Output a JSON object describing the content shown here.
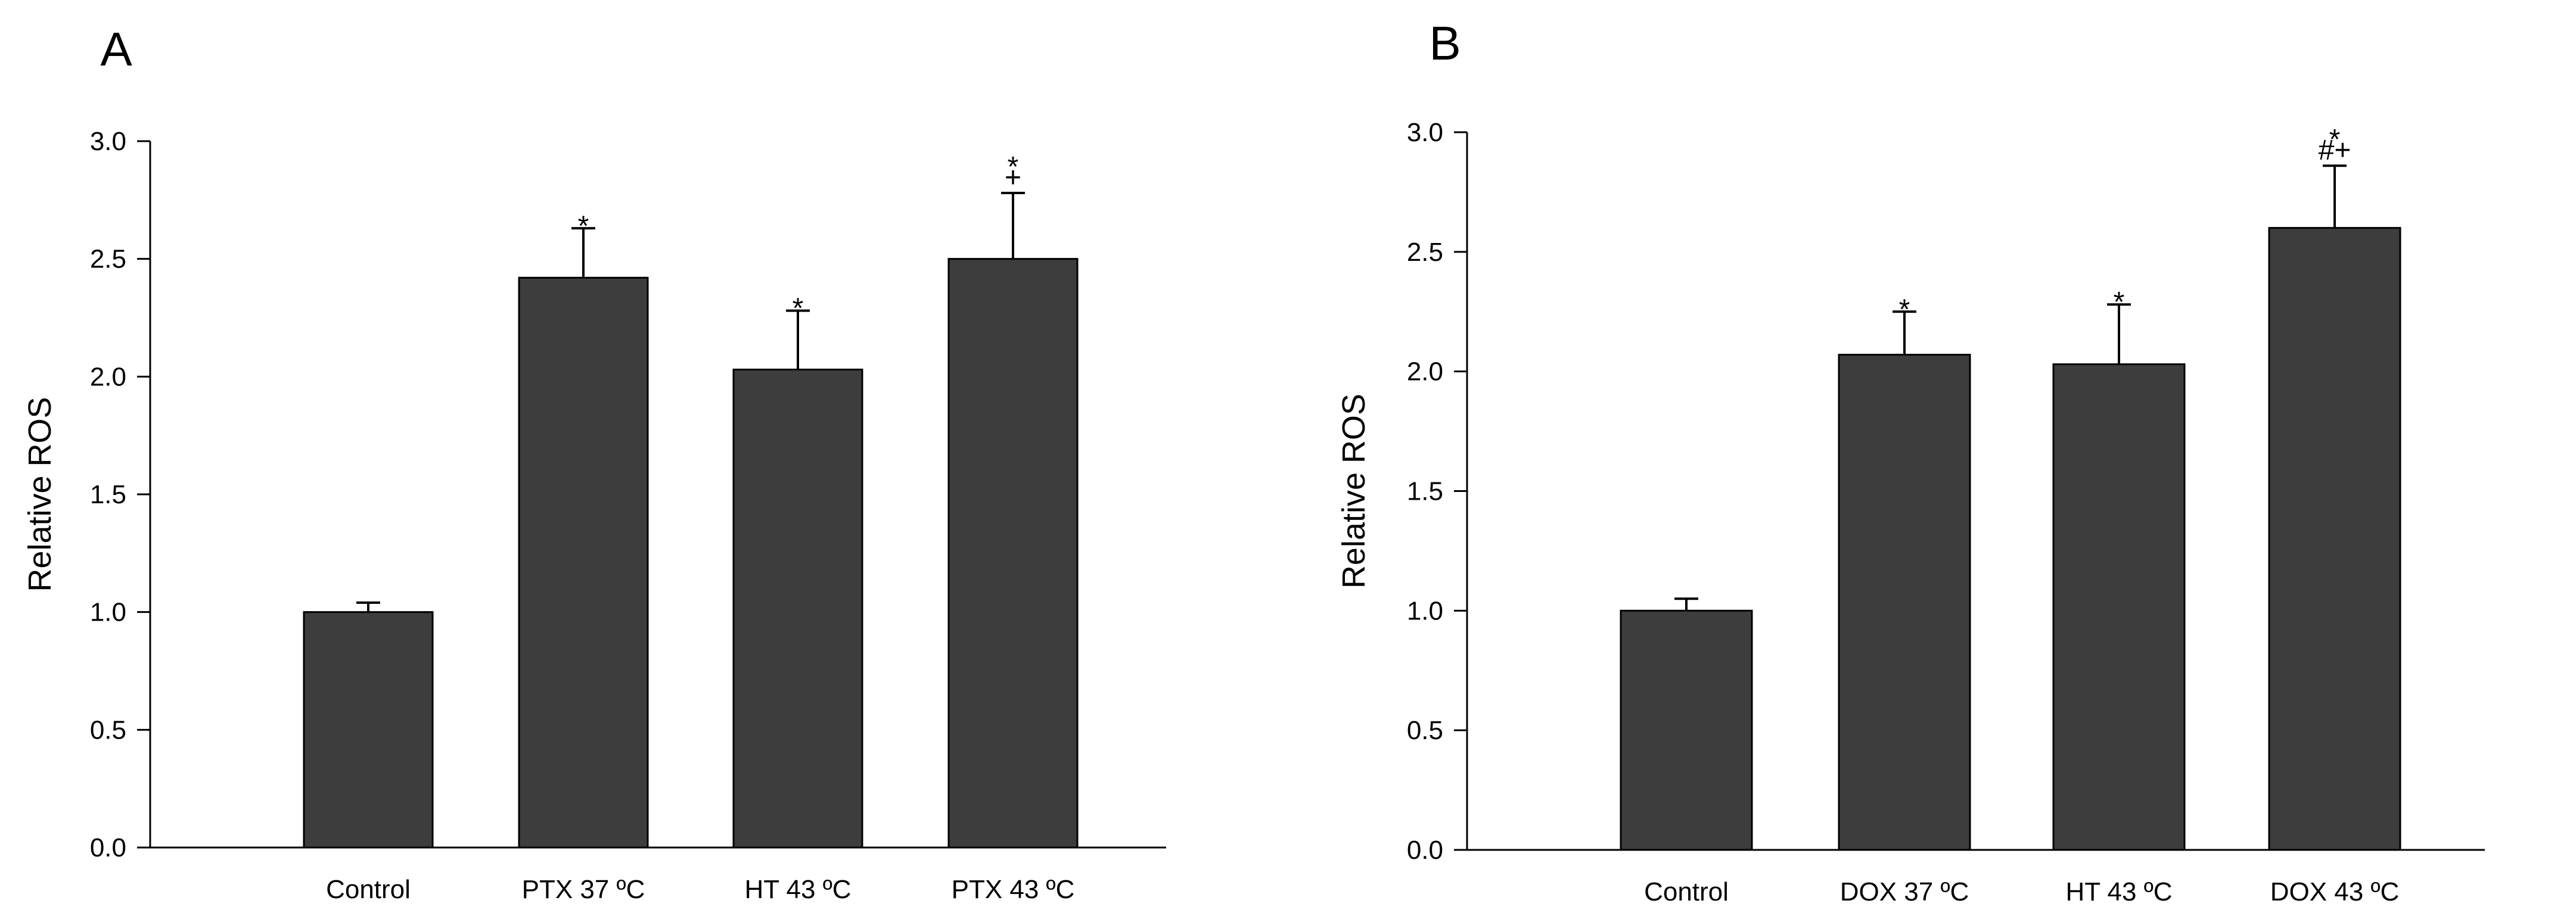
{
  "chart_data": [
    {
      "type": "bar",
      "panel": "A",
      "title": "",
      "xlabel": "",
      "ylabel": "Relative ROS",
      "ylim": [
        0,
        3.0
      ],
      "yticks": [
        "0.0",
        "0.5",
        "1.0",
        "1.5",
        "2.0",
        "2.5",
        "3.0"
      ],
      "categories": [
        "Control",
        "PTX 37 ºC",
        "HT 43 ºC",
        "PTX 43 ºC"
      ],
      "values": [
        1.0,
        2.42,
        2.03,
        2.5
      ],
      "errors": [
        0.04,
        0.21,
        0.25,
        0.28
      ],
      "annotations": [
        "",
        "*",
        "*",
        "*\n+"
      ],
      "bar_color": "#3d3d3d"
    },
    {
      "type": "bar",
      "panel": "B",
      "title": "",
      "xlabel": "",
      "ylabel": "Relative ROS",
      "ylim": [
        0,
        3.0
      ],
      "yticks": [
        "0.0",
        "0.5",
        "1.0",
        "1.5",
        "2.0",
        "2.5",
        "3.0"
      ],
      "categories": [
        "Control",
        "DOX 37 ºC",
        "HT 43 ºC",
        "DOX 43 ºC"
      ],
      "values": [
        1.0,
        2.07,
        2.03,
        2.6
      ],
      "errors": [
        0.05,
        0.18,
        0.25,
        0.26
      ],
      "annotations": [
        "",
        "*",
        "*",
        "*\n#+"
      ],
      "bar_color": "#3d3d3d"
    }
  ]
}
